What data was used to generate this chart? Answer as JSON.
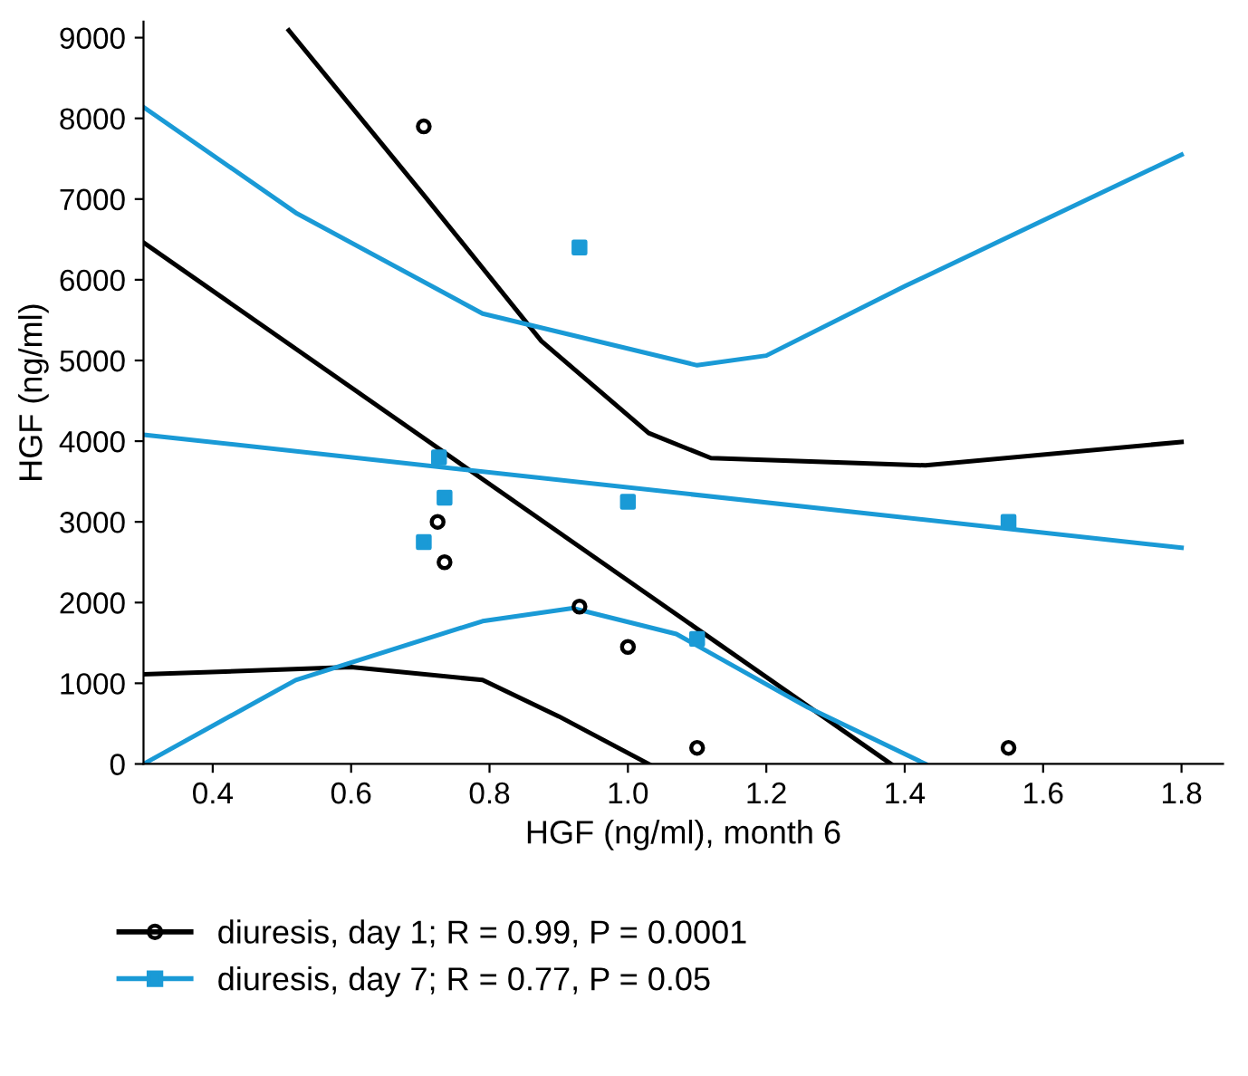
{
  "chart_data": {
    "type": "scatter",
    "xlabel": "HGF (ng/ml), month 6",
    "ylabel": "HGF (ng/ml)",
    "xlim": [
      0.3,
      1.86
    ],
    "ylim": [
      0,
      9200
    ],
    "xticks": [
      0.4,
      0.6,
      0.8,
      {
        "value": 1,
        "label": "1.0"
      },
      1.2,
      1.4,
      1.6,
      1.8
    ],
    "yticks": [
      0,
      1000,
      2000,
      3000,
      4000,
      5000,
      6000,
      7000,
      8000,
      9000
    ],
    "grid": false,
    "legend": "bottom",
    "series": [
      {
        "name": "diuresis, day 1; R = 0.99, P = 0.0001",
        "marker": "circle",
        "color": "#000000",
        "x": [
          0.705,
          0.725,
          0.735,
          0.93,
          1.0,
          1.1,
          1.55
        ],
        "values": [
          7900,
          3000,
          2500,
          1950,
          1450,
          200,
          200
        ]
      },
      {
        "name": "diuresis, day 7; R = 0.77, P = 0.05",
        "marker": "square",
        "color": "#1a9ad6",
        "x": [
          0.705,
          0.727,
          0.735,
          0.93,
          1.0,
          1.1,
          1.55
        ],
        "values": [
          2750,
          3800,
          3300,
          6400,
          3250,
          1550,
          3000
        ]
      },
      {
        "type": "line",
        "color": "#000000",
        "x": [
          0.3,
          1.38
        ],
        "values": [
          6460,
          0
        ]
      },
      {
        "type": "line",
        "color": "#000000",
        "x": [
          0.51,
          0.705,
          0.875,
          1.03,
          1.12,
          1.43,
          1.8
        ],
        "values": [
          9090,
          7050,
          5240,
          4100,
          3790,
          3700,
          3990
        ]
      },
      {
        "type": "line",
        "color": "#000000",
        "x": [
          0.3,
          0.6,
          0.79,
          0.9,
          1.03
        ],
        "values": [
          1110,
          1200,
          1040,
          590,
          0
        ]
      },
      {
        "type": "line",
        "color": "#1a9ad6",
        "x": [
          0.3,
          1.8
        ],
        "values": [
          4080,
          2680
        ]
      },
      {
        "type": "line",
        "color": "#1a9ad6",
        "x": [
          0.3,
          0.52,
          0.79,
          1.1,
          1.2,
          1.4,
          1.8
        ],
        "values": [
          8140,
          6830,
          5580,
          4940,
          5060,
          5920,
          7550
        ]
      },
      {
        "type": "line",
        "color": "#1a9ad6",
        "x": [
          0.3,
          0.52,
          0.79,
          0.92,
          1.07,
          1.26,
          1.43
        ],
        "values": [
          0,
          1040,
          1770,
          1930,
          1610,
          700,
          0
        ]
      }
    ]
  }
}
